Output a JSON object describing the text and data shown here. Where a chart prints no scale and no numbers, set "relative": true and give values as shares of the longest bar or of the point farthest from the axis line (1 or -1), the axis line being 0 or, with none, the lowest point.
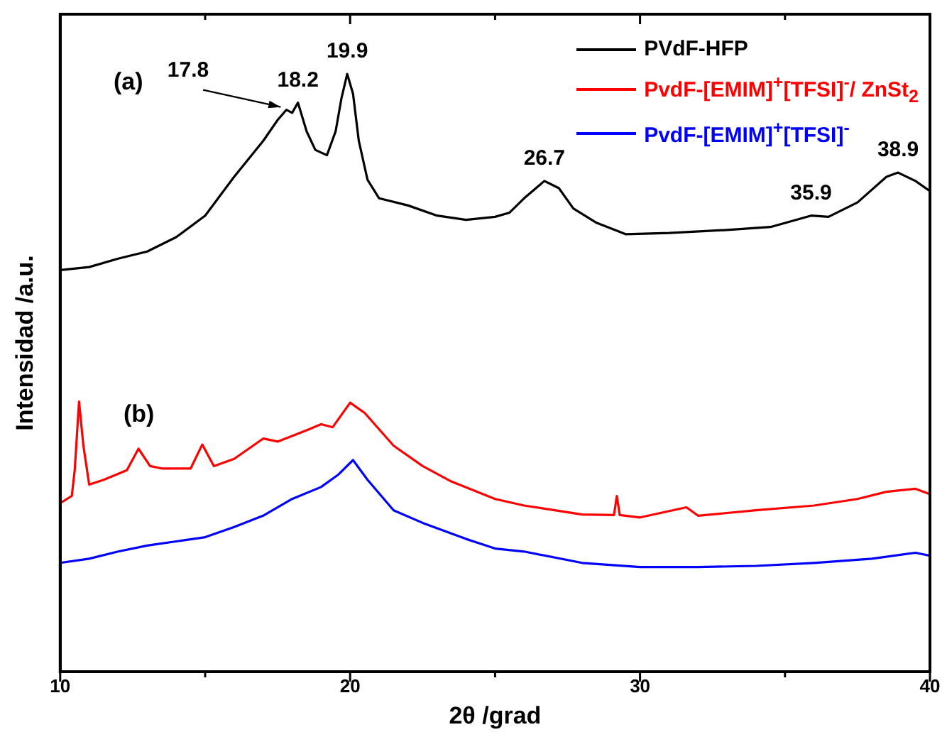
{
  "chart_data": {
    "type": "line",
    "relative": true,
    "xlabel": "2θ /grad",
    "ylabel": "Intensidad /a.u.",
    "xlim": [
      10,
      40
    ],
    "xticks": [
      10,
      {
        "value": 15,
        "label": null
      },
      20,
      {
        "value": 25,
        "label": null
      },
      30,
      {
        "value": 35,
        "label": null
      },
      40
    ],
    "tick_labels": "x",
    "grid": false,
    "legend": "top right",
    "marker": "none",
    "line_style": "solid",
    "annotations": [
      "(a)",
      "(b)",
      {
        "text": "17.8",
        "x": 17.8,
        "y": 0.94
      },
      {
        "text": "18.2",
        "x": 18.2,
        "y": 0.952
      },
      {
        "text": "19.9",
        "x": 19.9,
        "y": 1.0
      },
      {
        "text": "26.7",
        "x": 26.7,
        "y": 0.821
      },
      {
        "text": "35.9",
        "x": 35.9,
        "y": 0.763
      },
      {
        "text": "38.9",
        "x": 38.9,
        "y": 0.835
      }
    ],
    "series": [
      {
        "name": "PVdF-HFP",
        "color": "#000000",
        "x": [
          10,
          11,
          12,
          13,
          14,
          15,
          16,
          17,
          17.5,
          17.8,
          18,
          18.2,
          18.5,
          18.8,
          19.2,
          19.5,
          19.7,
          19.9,
          20.1,
          20.3,
          20.6,
          21,
          22,
          23,
          24,
          25,
          25.5,
          26,
          26.7,
          27.2,
          27.7,
          28.5,
          29.5,
          31,
          33,
          34.5,
          35.9,
          36.5,
          37.5,
          38.5,
          38.9,
          39.5,
          40
        ],
        "values": [
          0.672,
          0.677,
          0.691,
          0.703,
          0.727,
          0.763,
          0.828,
          0.888,
          0.923,
          0.94,
          0.935,
          0.952,
          0.904,
          0.873,
          0.864,
          0.904,
          0.959,
          1.0,
          0.967,
          0.888,
          0.823,
          0.792,
          0.78,
          0.763,
          0.756,
          0.761,
          0.768,
          0.792,
          0.821,
          0.809,
          0.775,
          0.751,
          0.732,
          0.734,
          0.739,
          0.744,
          0.763,
          0.761,
          0.785,
          0.828,
          0.835,
          0.821,
          0.804
        ]
      },
      {
        "name": "PvdF-[EMIM]$^{+}$[TFSI]$^{-}$/ ZnSt$_{2}$",
        "color": "#ff0000",
        "x": [
          10,
          10.4,
          10.5,
          10.65,
          10.8,
          11,
          11.5,
          12.3,
          12.7,
          13.1,
          13.5,
          14.5,
          14.9,
          15.3,
          16,
          17,
          17.5,
          18.5,
          19,
          19.4,
          20,
          20.5,
          21.5,
          22.5,
          23.5,
          25,
          26,
          28,
          29.1,
          29.2,
          29.3,
          30,
          31.6,
          32,
          34,
          36,
          37.5,
          38.5,
          39.5,
          40
        ],
        "values": [
          0.282,
          0.294,
          0.337,
          0.452,
          0.378,
          0.313,
          0.321,
          0.337,
          0.373,
          0.344,
          0.34,
          0.34,
          0.38,
          0.344,
          0.356,
          0.39,
          0.385,
          0.404,
          0.414,
          0.409,
          0.45,
          0.433,
          0.378,
          0.344,
          0.318,
          0.289,
          0.278,
          0.263,
          0.262,
          0.294,
          0.262,
          0.258,
          0.275,
          0.261,
          0.27,
          0.278,
          0.289,
          0.301,
          0.306,
          0.297
        ]
      },
      {
        "name": "PvdF-[EMIM]$^{+}$[TFSI]$^{-}$",
        "color": "#0000ff",
        "x": [
          10,
          11,
          12,
          13,
          14,
          15,
          16,
          17,
          18,
          19,
          19.6,
          20.1,
          20.6,
          21.5,
          22.5,
          24,
          25,
          26,
          28,
          30,
          32,
          34,
          36,
          38,
          39.5,
          40
        ],
        "values": [
          0.182,
          0.189,
          0.201,
          0.211,
          0.218,
          0.225,
          0.242,
          0.261,
          0.289,
          0.309,
          0.33,
          0.354,
          0.321,
          0.27,
          0.249,
          0.222,
          0.206,
          0.201,
          0.182,
          0.175,
          0.175,
          0.177,
          0.182,
          0.189,
          0.199,
          0.194
        ]
      }
    ]
  }
}
